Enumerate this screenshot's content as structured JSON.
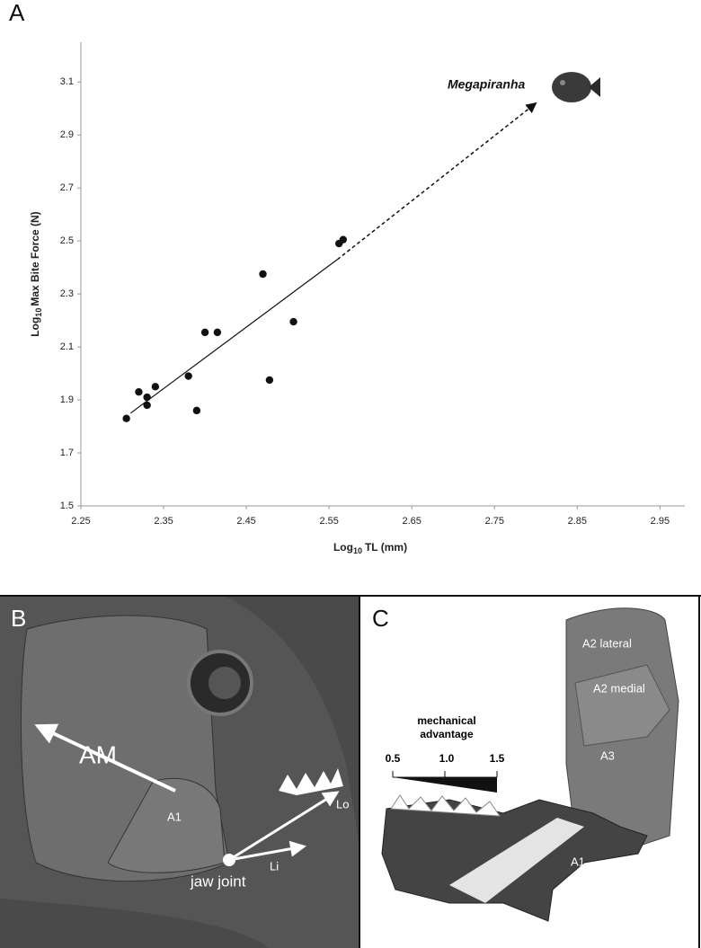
{
  "chart_data": {
    "type": "scatter",
    "panel_label": "A",
    "xlabel": {
      "main": "Log",
      "sub": "10",
      "rest": "TL (mm)"
    },
    "ylabel": {
      "main": "Log",
      "sub": "10",
      "rest": "Max Bite Force (N)"
    },
    "xlim": [
      2.25,
      2.98
    ],
    "ylim": [
      1.5,
      3.25
    ],
    "xticks": [
      2.25,
      2.35,
      2.45,
      2.55,
      2.65,
      2.75,
      2.85,
      2.95
    ],
    "yticks": [
      1.5,
      1.7,
      1.9,
      2.1,
      2.3,
      2.5,
      2.7,
      2.9,
      3.1
    ],
    "color": "#111111",
    "points": {
      "x": [
        2.305,
        2.32,
        2.33,
        2.33,
        2.34,
        2.38,
        2.39,
        2.4,
        2.415,
        2.47,
        2.478,
        2.507,
        2.562,
        2.567
      ],
      "y": [
        1.83,
        1.93,
        1.91,
        1.88,
        1.95,
        1.99,
        1.86,
        2.155,
        2.155,
        2.375,
        1.975,
        2.195,
        2.49,
        2.505
      ]
    },
    "trend": {
      "x": [
        2.31,
        2.56
      ],
      "y": [
        1.85,
        2.43
      ]
    },
    "extrapolation": {
      "x": [
        2.56,
        2.8
      ],
      "y": [
        2.43,
        3.02
      ]
    },
    "annotation": {
      "text": "Megapiranha",
      "x": 2.8,
      "y": 3.02
    }
  },
  "panel_b": {
    "label": "B",
    "am": "AM",
    "a1": "A1",
    "lo": "Lo",
    "li": "Li",
    "jaw_joint": "jaw joint"
  },
  "panel_c": {
    "label": "C",
    "a2_lateral": "A2 lateral",
    "a2_medial": "A2 medial",
    "a3": "A3",
    "a1": "A1",
    "scale_title": [
      "mechanical",
      "advantage"
    ],
    "scale_ticks": [
      "0.5",
      "1.0",
      "1.5"
    ]
  }
}
